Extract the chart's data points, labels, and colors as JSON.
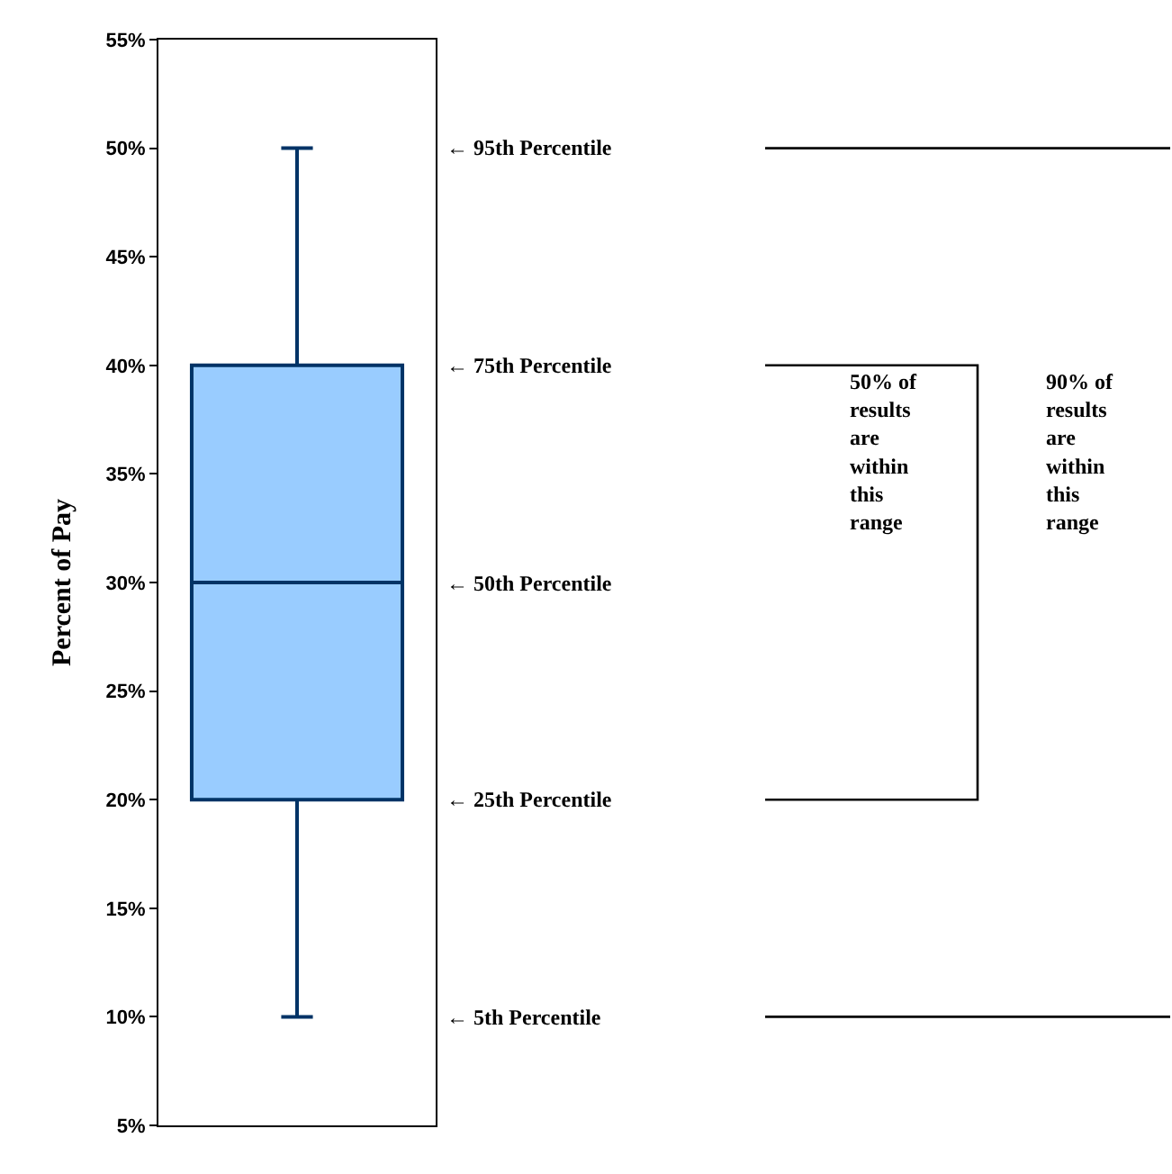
{
  "chart_data": {
    "type": "box",
    "ylabel": "Percent of Pay",
    "categories": [
      null
    ],
    "boxes": [
      {
        "low": 10,
        "q1": 20,
        "median": 30,
        "q3": 40,
        "high": 50
      }
    ],
    "color": "#99ccff",
    "ylim": [
      5,
      55
    ],
    "yticks": [
      {
        "value": 5,
        "label": "5%"
      },
      {
        "value": 10,
        "label": "10%"
      },
      {
        "value": 15,
        "label": "15%"
      },
      {
        "value": 20,
        "label": "20%"
      },
      {
        "value": 25,
        "label": "25%"
      },
      {
        "value": 30,
        "label": "30%"
      },
      {
        "value": 35,
        "label": "35%"
      },
      {
        "value": 40,
        "label": "40%"
      },
      {
        "value": 45,
        "label": "45%"
      },
      {
        "value": 50,
        "label": "50%"
      },
      {
        "value": 55,
        "label": "55%"
      }
    ],
    "annotations": [
      "← 95th Percentile",
      "← 75th Percentile",
      "← 50th Percentile",
      "← 25th Percentile",
      "← 5th Percentile",
      "50% of results are within this range",
      "90% of results are within this range"
    ]
  }
}
